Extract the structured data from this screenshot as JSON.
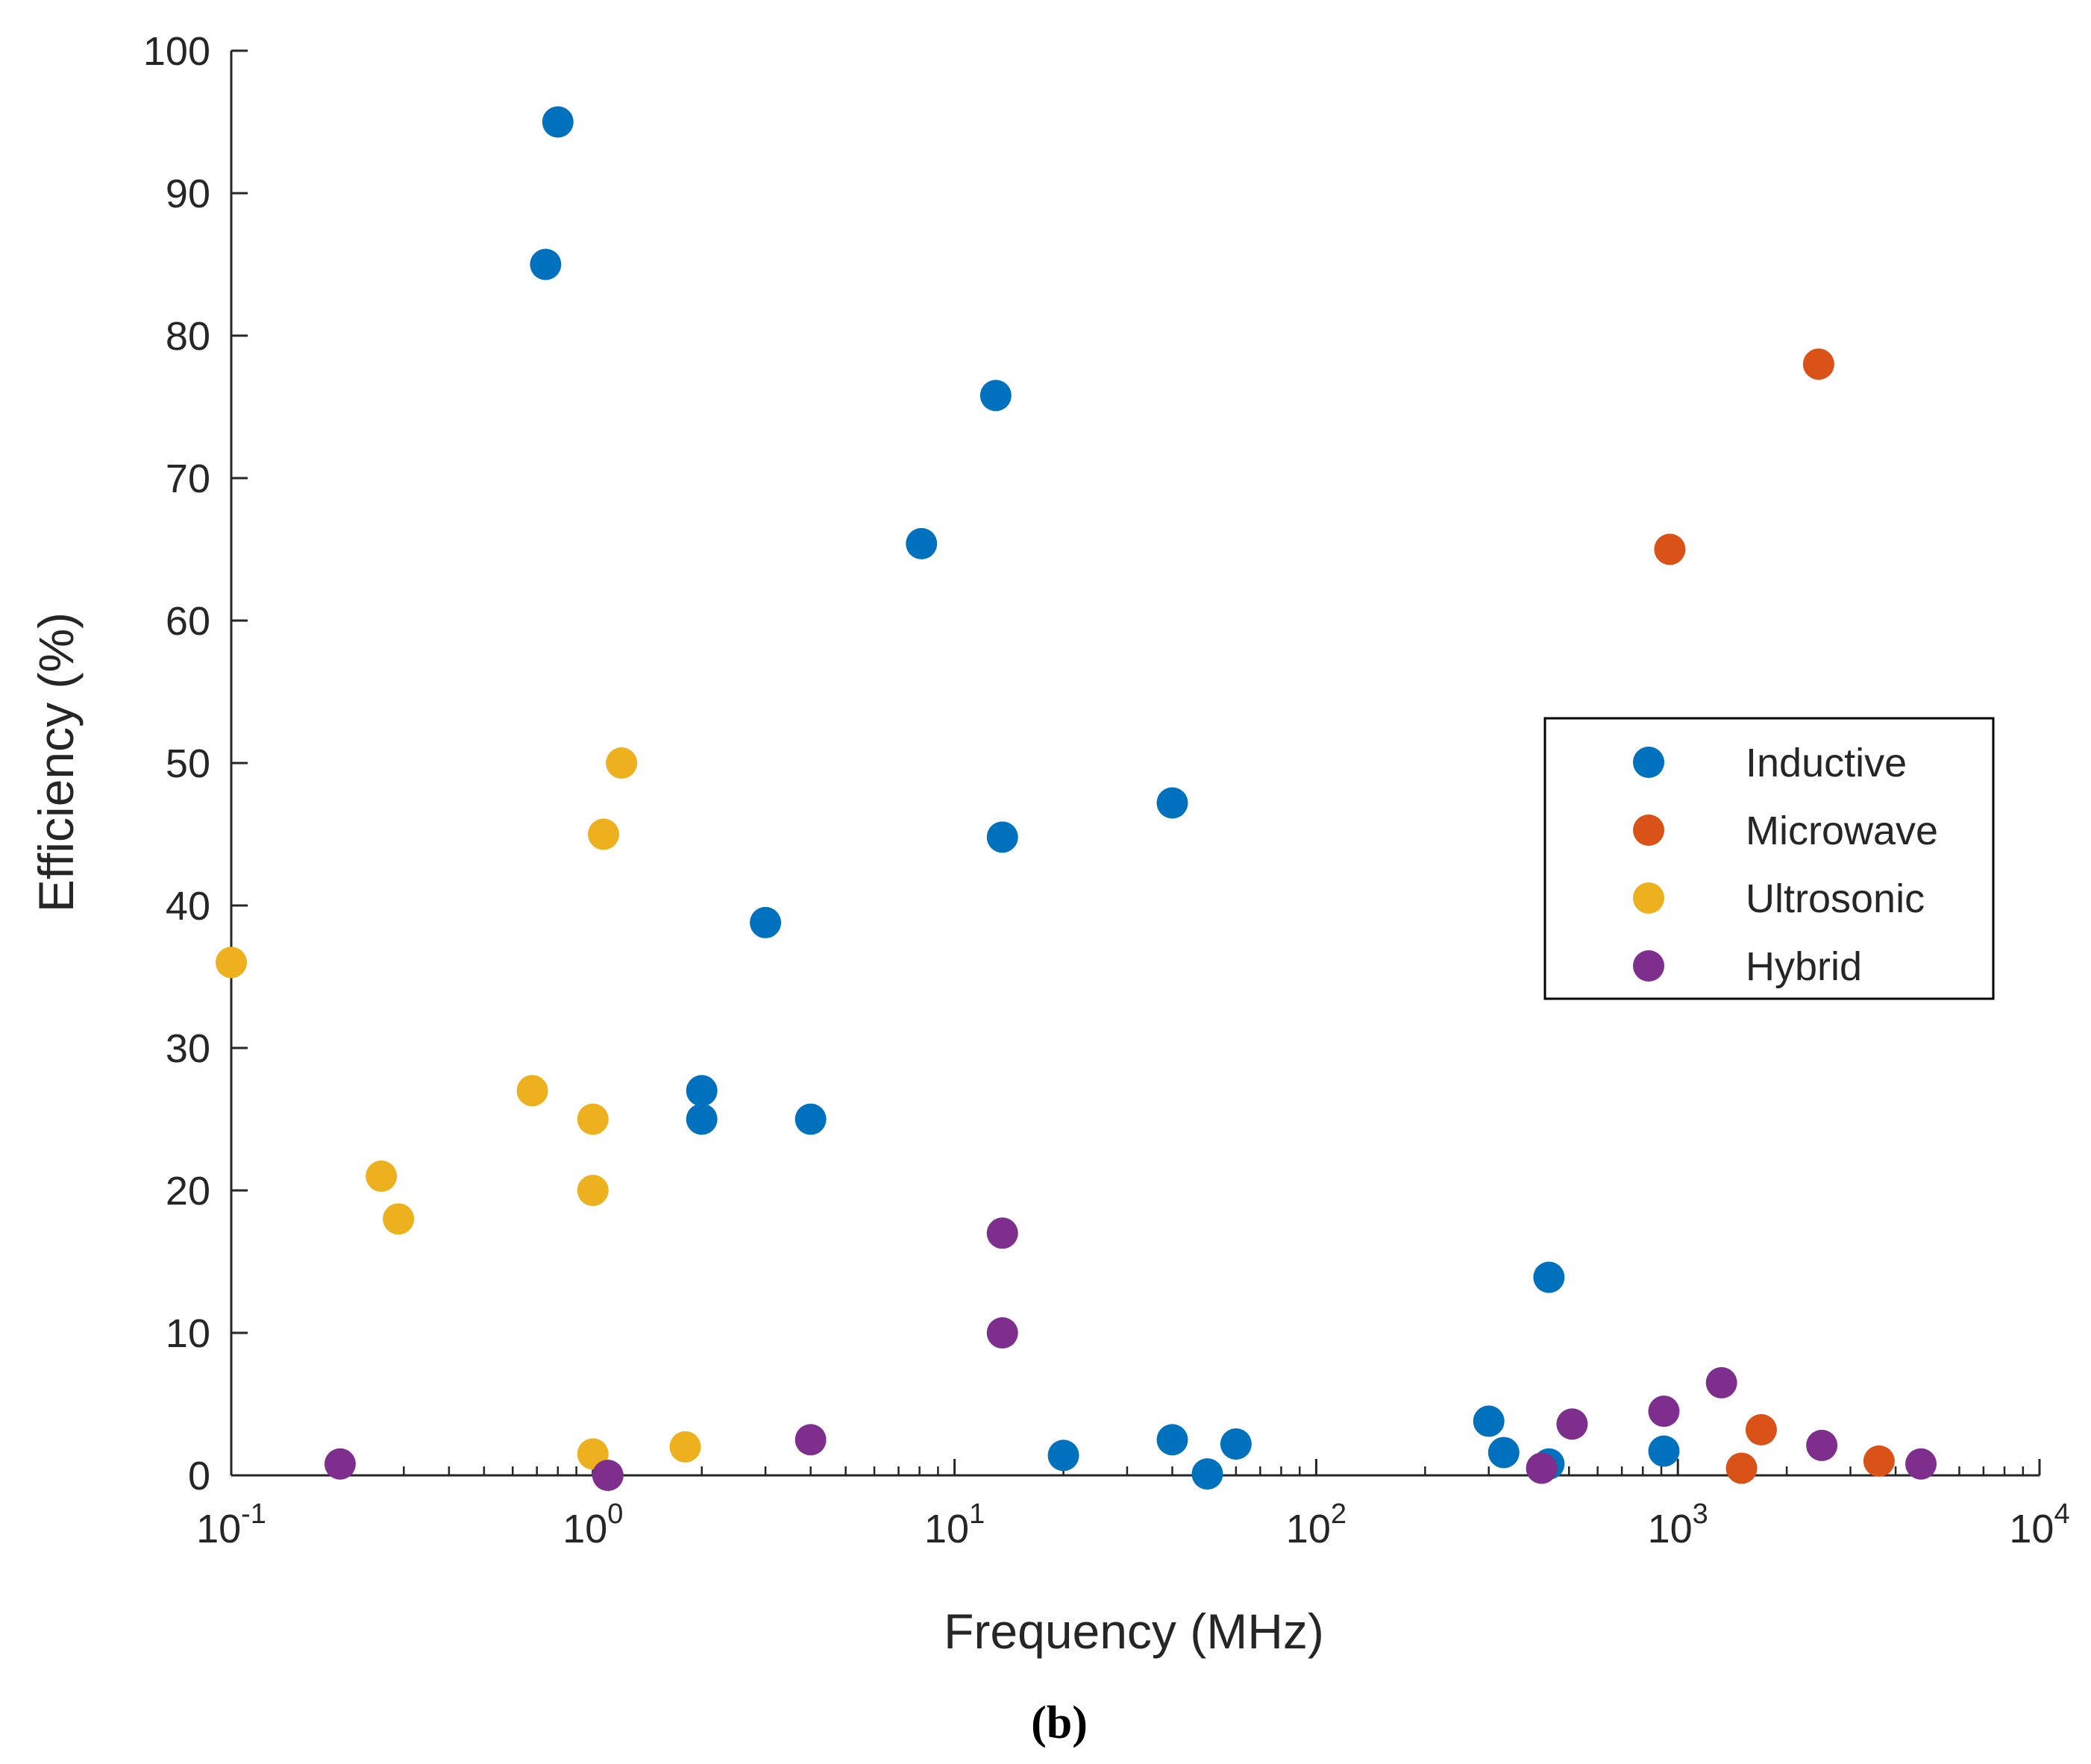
{
  "chart_data": {
    "type": "scatter",
    "caption": "(b)",
    "xlabel": "Frequency (MHz)",
    "ylabel": "Efficiency (%)",
    "xscale": "log",
    "xlim": [
      0.1,
      10000
    ],
    "ylim": [
      0,
      100
    ],
    "y_ticks": [
      "0",
      "10",
      "20",
      "30",
      "40",
      "50",
      "60",
      "70",
      "80",
      "90",
      "100"
    ],
    "x_ticks": [
      {
        "base": "10",
        "exp": "-1"
      },
      {
        "base": "10",
        "exp": "0"
      },
      {
        "base": "10",
        "exp": "1"
      },
      {
        "base": "10",
        "exp": "2"
      },
      {
        "base": "10",
        "exp": "3"
      },
      {
        "base": "10",
        "exp": "4"
      }
    ],
    "grid": false,
    "legend_position": "right",
    "series": [
      {
        "name": "Inductive",
        "color": "#0072BD",
        "points": [
          [
            0.8,
            95
          ],
          [
            0.74,
            85
          ],
          [
            13,
            75.8
          ],
          [
            8.1,
            65.4
          ],
          [
            40,
            47.2
          ],
          [
            13.56,
            44.8
          ],
          [
            3,
            38.8
          ],
          [
            2,
            27
          ],
          [
            2,
            25
          ],
          [
            4,
            25
          ],
          [
            440,
            13.9
          ],
          [
            300,
            3.8
          ],
          [
            330,
            1.6
          ],
          [
            440,
            0.8
          ],
          [
            20,
            1.4
          ],
          [
            40,
            2.5
          ],
          [
            60,
            2.2
          ],
          [
            50,
            0.1
          ],
          [
            915,
            1.7
          ]
        ]
      },
      {
        "name": "Microwave",
        "color": "#D95319",
        "points": [
          [
            2450,
            78
          ],
          [
            950,
            65
          ],
          [
            1700,
            3.2
          ],
          [
            1500,
            0.5
          ],
          [
            3600,
            1
          ]
        ]
      },
      {
        "name": "Ultrosonic",
        "color": "#EDB120",
        "points": [
          [
            1.2,
            50
          ],
          [
            1.07,
            45
          ],
          [
            0.1,
            36
          ],
          [
            0.68,
            27
          ],
          [
            1,
            25
          ],
          [
            0.26,
            21
          ],
          [
            1,
            20
          ],
          [
            0.29,
            18
          ],
          [
            1,
            1.5
          ],
          [
            1.8,
            2
          ]
        ]
      },
      {
        "name": "Hybrid",
        "color": "#7E2F8E",
        "points": [
          [
            0.2,
            0.8
          ],
          [
            1.1,
            0
          ],
          [
            4,
            2.5
          ],
          [
            13.56,
            17
          ],
          [
            13.56,
            10
          ],
          [
            420,
            0.5
          ],
          [
            510,
            3.6
          ],
          [
            915,
            4.5
          ],
          [
            1320,
            6.5
          ],
          [
            2500,
            2.1
          ],
          [
            4700,
            0.8
          ]
        ]
      }
    ]
  }
}
